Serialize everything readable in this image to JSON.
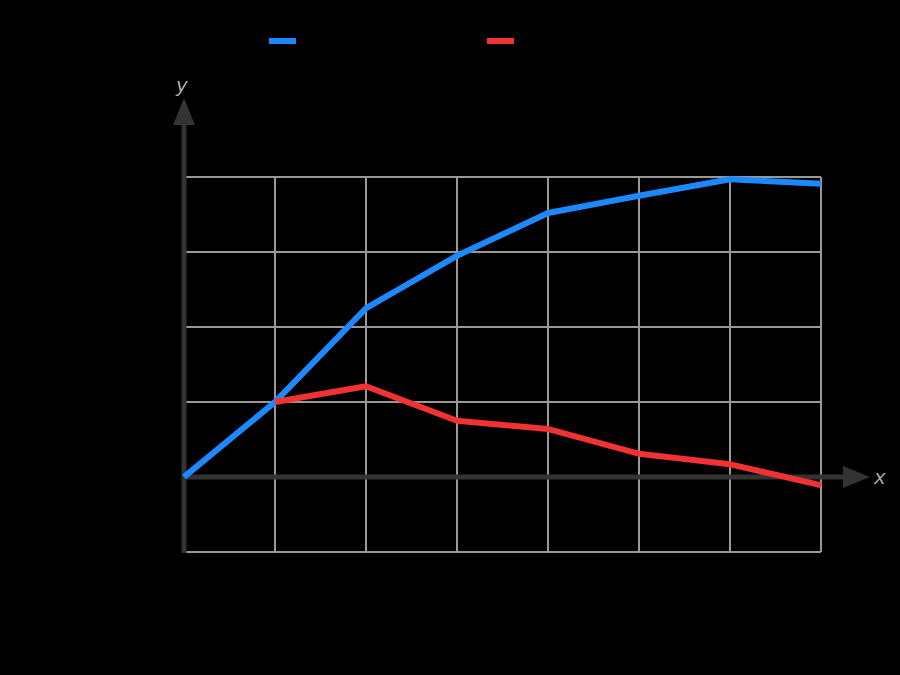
{
  "chart_data": {
    "type": "line",
    "title": "",
    "xlabel": "x",
    "ylabel": "y",
    "x": [
      0,
      1,
      2,
      3,
      4,
      5,
      6,
      7
    ],
    "series": [
      {
        "name": "",
        "color": "#1e88ff",
        "values": [
          0.0,
          1.0,
          2.25,
          2.95,
          3.52,
          3.75,
          3.97,
          3.91
        ]
      },
      {
        "name": "",
        "color": "#f03232",
        "values": [
          null,
          1.0,
          1.21,
          0.75,
          0.64,
          0.31,
          0.17,
          -0.11
        ]
      }
    ],
    "xlim": [
      0,
      7
    ],
    "ylim": [
      -1,
      4
    ],
    "grid": true,
    "legend_position": "top",
    "tick_labels_visible": false
  },
  "axes": {
    "x_label": "x",
    "y_label": "y"
  },
  "colors": {
    "background": "#000000",
    "grid": "#999999",
    "axis": "#333333",
    "axis_label": "#aaaaaa"
  }
}
